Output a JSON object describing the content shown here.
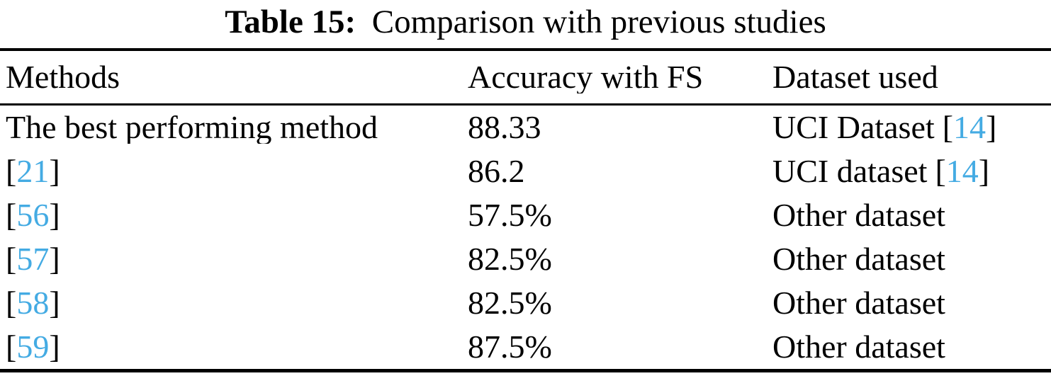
{
  "colors": {
    "citation_blue": "#44abe3",
    "text": "#000000",
    "background": "#ffffff"
  },
  "caption": {
    "label": "Table 15:",
    "text": "Comparison with previous studies"
  },
  "table": {
    "columns": [
      "Methods",
      "Accuracy with FS",
      "Dataset used"
    ],
    "rows": [
      {
        "method_text": "The best performing method",
        "method_cite": "",
        "accuracy": "88.33",
        "dataset_text": "UCI Dataset",
        "dataset_cite": "14"
      },
      {
        "method_text": "",
        "method_cite": "21",
        "accuracy": "86.2",
        "dataset_text": "UCI dataset",
        "dataset_cite": "14"
      },
      {
        "method_text": "",
        "method_cite": "56",
        "accuracy": "57.5%",
        "dataset_text": "Other dataset",
        "dataset_cite": ""
      },
      {
        "method_text": "",
        "method_cite": "57",
        "accuracy": "82.5%",
        "dataset_text": "Other dataset",
        "dataset_cite": ""
      },
      {
        "method_text": "",
        "method_cite": "58",
        "accuracy": "82.5%",
        "dataset_text": "Other dataset",
        "dataset_cite": ""
      },
      {
        "method_text": "",
        "method_cite": "59",
        "accuracy": "87.5%",
        "dataset_text": "Other dataset",
        "dataset_cite": ""
      }
    ]
  }
}
